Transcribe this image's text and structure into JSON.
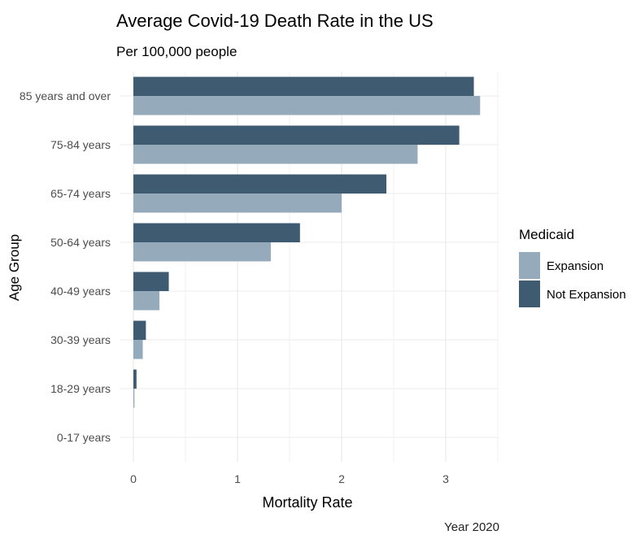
{
  "chart_data": {
    "type": "bar",
    "orientation": "horizontal",
    "title": "Average Covid-19 Death Rate in the US",
    "subtitle": "Per 100,000 people",
    "xlabel": "Mortality Rate",
    "ylabel": "Age Group",
    "caption": "Year 2020",
    "xlim": [
      0,
      3.5
    ],
    "xticks": [
      "0",
      "1",
      "2",
      "3"
    ],
    "categories": [
      "85 years and over",
      "75-84 years",
      "65-74 years",
      "50-64 years",
      "40-49 years",
      "30-39 years",
      "18-29 years",
      "0-17 years"
    ],
    "series": [
      {
        "name": "Expansion",
        "color": "#95abbb",
        "values": [
          3.33,
          2.73,
          2.0,
          1.32,
          0.25,
          0.09,
          0.01,
          0.0
        ]
      },
      {
        "name": "Not Expansion",
        "color": "#3f5b71",
        "values": [
          3.27,
          3.13,
          2.43,
          1.6,
          0.34,
          0.12,
          0.03,
          0.0
        ]
      }
    ],
    "legend": {
      "title": "Medicaid",
      "position": "right"
    },
    "grid": true
  }
}
